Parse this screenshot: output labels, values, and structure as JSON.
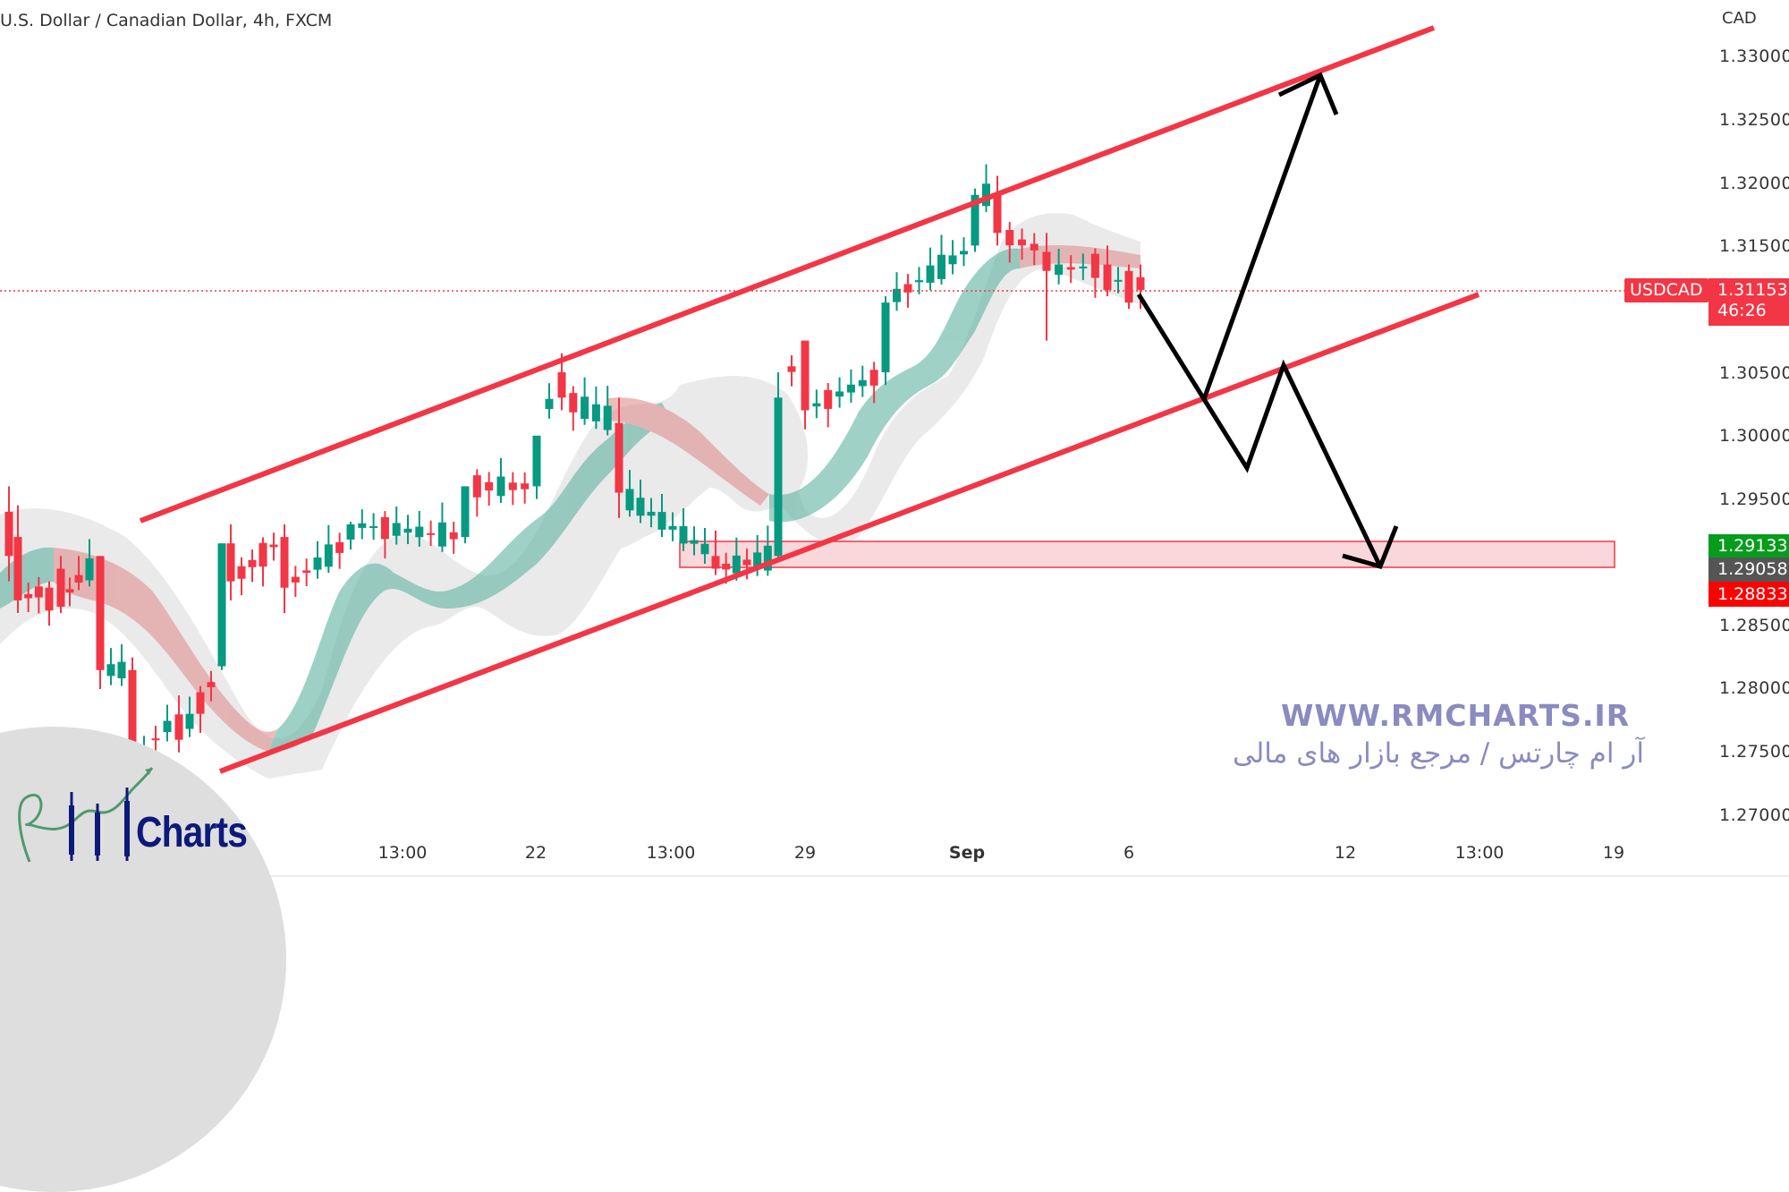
{
  "header": {
    "title": "U.S. Dollar / Canadian Dollar, 4h, FXCM"
  },
  "price_axis": {
    "currency": "CAD",
    "ticks": [
      "1.33000",
      "1.32500",
      "1.32000",
      "1.31500",
      "1.30500",
      "1.30000",
      "1.29500",
      "1.28500",
      "1.28000",
      "1.27500",
      "1.27000"
    ]
  },
  "time_axis": {
    "ticks": [
      "13:00",
      "22",
      "13:00",
      "29",
      "Sep",
      "6",
      "12",
      "13:00",
      "19"
    ]
  },
  "price_tags": {
    "symbol": "USDCAD",
    "last_price": "1.31153",
    "countdown": "46:26",
    "zone_high": "1.29133",
    "zone_mid": "1.29058",
    "zone_low": "1.28833"
  },
  "colors": {
    "up": "#089981",
    "down": "#f23645",
    "channel": "#f23645",
    "projection": "#000000",
    "zone_fill": "#f9d7da",
    "zone_border": "#f23645",
    "watermark": "#8a8bbf",
    "logo_text": "#0c1a7a"
  },
  "watermark": {
    "url": "WWW.RMCHARTS.IR",
    "tagline": "آر ام چارتس / مرجع بازار های مالی"
  },
  "logo": {
    "text": "Charts"
  },
  "chart_data": {
    "type": "candlestick",
    "title": "U.S. Dollar / Canadian Dollar, 4h, FXCM",
    "symbol": "USDCAD",
    "timeframe": "4h",
    "ylabel": "CAD",
    "ylim": [
      1.2665,
      1.3325
    ],
    "yticks": [
      1.27,
      1.275,
      1.28,
      1.285,
      1.29,
      1.295,
      1.3,
      1.305,
      1.315,
      1.32,
      1.325,
      1.33
    ],
    "xticks": [
      "13:00",
      "22",
      "13:00",
      "29",
      "Sep",
      "6",
      "12",
      "13:00",
      "19"
    ],
    "last_price": 1.31153,
    "grid": false,
    "annotations": [
      {
        "type": "ascending_channel",
        "upper": [
          [
            1.2956,
            "start"
          ],
          [
            1.3322,
            "end"
          ]
        ],
        "lower": [
          [
            1.2735,
            "start"
          ],
          [
            1.31,
            "end"
          ]
        ]
      },
      {
        "type": "support_zone",
        "from": 1.28833,
        "to": 1.29133,
        "mid": 1.29058
      },
      {
        "type": "projection_bullish",
        "path": [
          1.3115,
          1.303,
          1.3285
        ]
      },
      {
        "type": "projection_bearish",
        "path": [
          1.3115,
          1.303,
          1.2975,
          1.3055,
          1.2905
        ]
      }
    ],
    "candles_approx": [
      {
        "x": 10,
        "o": 1.294,
        "h": 1.296,
        "c": 1.2905,
        "l": 1.2885
      },
      {
        "x": 20,
        "o": 1.292,
        "h": 1.2945,
        "c": 1.287,
        "l": 1.286
      },
      {
        "x": 55,
        "o": 1.288,
        "h": 1.2885,
        "c": 1.2862,
        "l": 1.285
      },
      {
        "x": 68,
        "o": 1.2895,
        "h": 1.2905,
        "c": 1.2865,
        "l": 1.286
      },
      {
        "x": 88,
        "o": 1.289,
        "h": 1.2905,
        "c": 1.2884,
        "l": 1.2878
      },
      {
        "x": 112,
        "o": 1.2905,
        "h": 1.2905,
        "c": 1.2815,
        "l": 1.28
      },
      {
        "x": 148,
        "o": 1.2815,
        "h": 1.2825,
        "c": 1.2742,
        "l": 1.2735
      },
      {
        "x": 200,
        "o": 1.278,
        "h": 1.2795,
        "c": 1.276,
        "l": 1.275
      },
      {
        "x": 248,
        "o": 1.2818,
        "h": 1.283,
        "c": 1.2915,
        "l": 1.2815
      },
      {
        "x": 258,
        "o": 1.2915,
        "h": 1.293,
        "c": 1.2885,
        "l": 1.287
      },
      {
        "x": 318,
        "o": 1.292,
        "h": 1.293,
        "c": 1.288,
        "l": 1.286
      },
      {
        "x": 392,
        "o": 1.2918,
        "h": 1.2932,
        "c": 1.293,
        "l": 1.291
      },
      {
        "x": 520,
        "o": 1.292,
        "h": 1.294,
        "c": 1.296,
        "l": 1.2915
      },
      {
        "x": 600,
        "o": 1.296,
        "h": 1.298,
        "c": 1.3,
        "l": 1.295
      },
      {
        "x": 628,
        "o": 1.305,
        "h": 1.3065,
        "c": 1.303,
        "l": 1.302
      },
      {
        "x": 692,
        "o": 1.301,
        "h": 1.303,
        "c": 1.2955,
        "l": 1.2935
      },
      {
        "x": 800,
        "o": 1.2905,
        "h": 1.2925,
        "c": 1.2895,
        "l": 1.289
      },
      {
        "x": 870,
        "o": 1.2905,
        "h": 1.305,
        "c": 1.303,
        "l": 1.29
      },
      {
        "x": 900,
        "o": 1.3075,
        "h": 1.3075,
        "c": 1.302,
        "l": 1.3005
      },
      {
        "x": 990,
        "o": 1.305,
        "h": 1.311,
        "c": 1.3105,
        "l": 1.304
      },
      {
        "x": 1090,
        "o": 1.315,
        "h": 1.3195,
        "c": 1.319,
        "l": 1.3145
      },
      {
        "x": 1115,
        "o": 1.319,
        "h": 1.3205,
        "c": 1.316,
        "l": 1.315
      },
      {
        "x": 1170,
        "o": 1.3145,
        "h": 1.316,
        "c": 1.313,
        "l": 1.3075
      },
      {
        "x": 1238,
        "o": 1.3135,
        "h": 1.315,
        "c": 1.3115,
        "l": 1.311
      },
      {
        "x": 1262,
        "o": 1.313,
        "h": 1.3135,
        "c": 1.3105,
        "l": 1.31
      },
      {
        "x": 1275,
        "o": 1.3125,
        "h": 1.3135,
        "c": 1.3115,
        "l": 1.31
      }
    ]
  }
}
